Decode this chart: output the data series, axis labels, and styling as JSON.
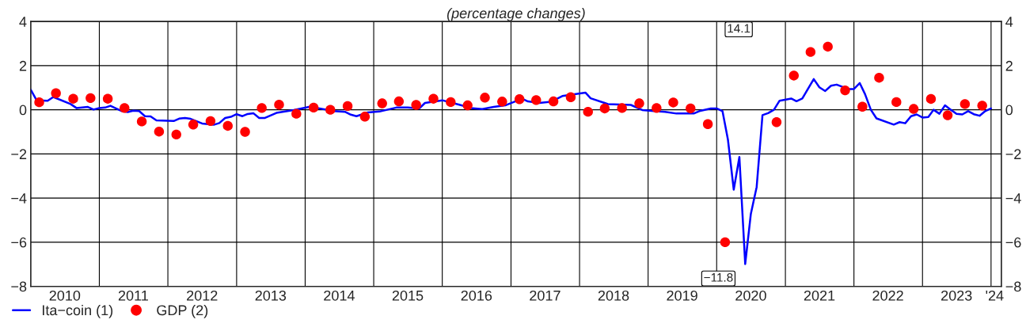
{
  "chart_data": {
    "type": "line",
    "title": "(percentage changes)",
    "xlim": [
      "2010-01-01",
      "2024-02-25"
    ],
    "xticks": [
      {
        "value": "2010-07-01",
        "label": "2010"
      },
      {
        "value": "2011-07-01",
        "label": "2011"
      },
      {
        "value": "2012-07-01",
        "label": "2012"
      },
      {
        "value": "2013-07-01",
        "label": "2013"
      },
      {
        "value": "2014-07-01",
        "label": "2014"
      },
      {
        "value": "2015-07-01",
        "label": "2015"
      },
      {
        "value": "2016-07-01",
        "label": "2016"
      },
      {
        "value": "2017-07-01",
        "label": "2017"
      },
      {
        "value": "2018-07-01",
        "label": "2018"
      },
      {
        "value": "2019-07-01",
        "label": "2019"
      },
      {
        "value": "2020-07-01",
        "label": "2020"
      },
      {
        "value": "2021-07-01",
        "label": "2021"
      },
      {
        "value": "2022-07-01",
        "label": "2022"
      },
      {
        "value": "2023-07-01",
        "label": "2023"
      },
      {
        "value": "2024-01-20",
        "label": "'24"
      },
      {
        "value": "2011-01-01",
        "label": null
      },
      {
        "value": "2012-01-01",
        "label": null
      },
      {
        "value": "2013-01-01",
        "label": null
      },
      {
        "value": "2014-01-01",
        "label": null
      },
      {
        "value": "2015-01-01",
        "label": null
      },
      {
        "value": "2016-01-01",
        "label": null
      },
      {
        "value": "2017-01-01",
        "label": null
      },
      {
        "value": "2018-01-01",
        "label": null
      },
      {
        "value": "2019-01-01",
        "label": null
      },
      {
        "value": "2020-01-01",
        "label": null
      },
      {
        "value": "2021-01-01",
        "label": null
      },
      {
        "value": "2022-01-01",
        "label": null
      },
      {
        "value": "2023-01-01",
        "label": null
      },
      {
        "value": "2024-01-01",
        "label": null
      }
    ],
    "ylim": [
      -8,
      4
    ],
    "yticks": [
      {
        "value": -8,
        "label": "−8"
      },
      {
        "value": -6,
        "label": "−6"
      },
      {
        "value": -4,
        "label": "−4"
      },
      {
        "value": -2,
        "label": "−2"
      },
      0,
      2,
      4
    ],
    "y2lim": [
      -8,
      4
    ],
    "y2ticks": [
      {
        "value": -8,
        "label": "−8"
      },
      {
        "value": -6,
        "label": "−6"
      },
      {
        "value": -4,
        "label": "−4"
      },
      {
        "value": -2,
        "label": "−2"
      },
      0,
      2,
      4
    ],
    "grid": true,
    "legend": "bottom left",
    "series": [
      {
        "name": "Ita−coin (1)",
        "color": "#0000ff",
        "line_style": "solid",
        "x": [
          "2010-01",
          "2010-02",
          "2010-04",
          "2010-05",
          "2010-08",
          "2010-09",
          "2010-11",
          "2010-12",
          "2011-01",
          "2011-02",
          "2011-03",
          "2011-05",
          "2011-06",
          "2011-07",
          "2011-08",
          "2011-09",
          "2011-10",
          "2011-11",
          "2012-02",
          "2012-03",
          "2012-04",
          "2012-05",
          "2012-07",
          "2012-09",
          "2012-10",
          "2012-11",
          "2012-12",
          "2013-01",
          "2013-02",
          "2013-03",
          "2013-04",
          "2013-05",
          "2013-06",
          "2013-08",
          "2013-11",
          "2014-02",
          "2014-03",
          "2014-06",
          "2014-08",
          "2014-09",
          "2014-10",
          "2014-12",
          "2015-02",
          "2015-05",
          "2015-07",
          "2015-09",
          "2015-10",
          "2016-01",
          "2016-04",
          "2016-06",
          "2016-08",
          "2016-10",
          "2016-12",
          "2017-03",
          "2017-04",
          "2017-06",
          "2017-08",
          "2017-10",
          "2018-02",
          "2018-03",
          "2018-06",
          "2018-10",
          "2018-12",
          "2019-02",
          "2019-04",
          "2019-06",
          "2019-09",
          "2019-10",
          "2019-12",
          "2020-01",
          "2020-02",
          "2020-03",
          "2020-04",
          "2020-05",
          "2020-06",
          "2020-07",
          "2020-08",
          "2020-09",
          "2020-10",
          "2020-11",
          "2020-12",
          "2021-02",
          "2021-03",
          "2021-04",
          "2021-06",
          "2021-07",
          "2021-08",
          "2021-09",
          "2021-10",
          "2021-12",
          "2022-01",
          "2022-02",
          "2022-03",
          "2022-04",
          "2022-05",
          "2022-08",
          "2022-09",
          "2022-10",
          "2022-11",
          "2022-12",
          "2023-01",
          "2023-02",
          "2023-03",
          "2023-04",
          "2023-05",
          "2023-06",
          "2023-07",
          "2023-08",
          "2023-09",
          "2023-10",
          "2023-11",
          "2023-12",
          "2024-01"
        ],
        "values": [
          0.91,
          0.43,
          0.41,
          0.58,
          0.26,
          0.08,
          0.13,
          0.01,
          0.08,
          0.1,
          0.18,
          -0.06,
          -0.1,
          -0.04,
          -0.06,
          -0.29,
          -0.3,
          -0.48,
          -0.51,
          -0.4,
          -0.37,
          -0.41,
          -0.62,
          -0.68,
          -0.6,
          -0.37,
          -0.32,
          -0.2,
          -0.29,
          -0.19,
          -0.16,
          -0.37,
          -0.37,
          -0.14,
          -0.01,
          0.15,
          0.09,
          -0.06,
          -0.09,
          -0.22,
          -0.29,
          -0.12,
          -0.08,
          0.1,
          0.1,
          0.06,
          0.31,
          0.43,
          0.23,
          0.08,
          0.03,
          0.13,
          0.2,
          0.5,
          0.38,
          0.31,
          0.36,
          0.62,
          0.78,
          0.52,
          0.26,
          0.22,
          -0.01,
          -0.06,
          -0.09,
          -0.17,
          -0.17,
          -0.06,
          0.06,
          0.06,
          -0.06,
          -1.35,
          -3.62,
          -2.14,
          -6.99,
          -4.72,
          -3.5,
          -0.24,
          -0.15,
          0.0,
          0.41,
          0.51,
          0.39,
          0.51,
          1.39,
          1.02,
          0.85,
          1.09,
          1.14,
          0.94,
          0.94,
          1.21,
          0.71,
          0.0,
          -0.39,
          -0.67,
          -0.56,
          -0.61,
          -0.29,
          -0.21,
          -0.35,
          -0.33,
          0.0,
          -0.18,
          0.2,
          0.0,
          -0.18,
          -0.21,
          -0.06,
          -0.2,
          -0.27,
          -0.06,
          0.06
        ]
      },
      {
        "name": "GDP (2)",
        "type": "scatter",
        "color": "#ff0000",
        "marker": "circle",
        "x": [
          "2010-02-15",
          "2010-05-15",
          "2010-08-15",
          "2010-11-15",
          "2011-02-15",
          "2011-05-15",
          "2011-08-15",
          "2011-11-15",
          "2012-02-15",
          "2012-05-15",
          "2012-08-15",
          "2012-11-15",
          "2013-02-15",
          "2013-05-15",
          "2013-08-15",
          "2013-11-15",
          "2014-02-15",
          "2014-05-15",
          "2014-08-15",
          "2014-11-15",
          "2015-02-15",
          "2015-05-15",
          "2015-08-15",
          "2015-11-15",
          "2016-02-15",
          "2016-05-15",
          "2016-08-15",
          "2016-11-15",
          "2017-02-15",
          "2017-05-15",
          "2017-08-15",
          "2017-11-15",
          "2018-02-15",
          "2018-05-15",
          "2018-08-15",
          "2018-11-15",
          "2019-02-15",
          "2019-05-15",
          "2019-08-15",
          "2019-11-15",
          "2020-02-15",
          "2020-05-15",
          "2020-08-15",
          "2020-11-15",
          "2021-02-15",
          "2021-05-15",
          "2021-08-15",
          "2021-11-15",
          "2022-02-15",
          "2022-05-15",
          "2022-08-15",
          "2022-11-15",
          "2023-02-15",
          "2023-05-15",
          "2023-08-15",
          "2023-11-15"
        ],
        "values": [
          0.34,
          0.75,
          0.5,
          0.53,
          0.5,
          0.08,
          -0.53,
          -0.99,
          -1.12,
          -0.67,
          -0.51,
          -0.73,
          -1.0,
          0.08,
          0.23,
          -0.18,
          0.1,
          0.0,
          0.17,
          -0.31,
          0.29,
          0.38,
          0.22,
          0.5,
          0.35,
          0.2,
          0.55,
          0.37,
          0.48,
          0.44,
          0.38,
          0.57,
          -0.09,
          0.06,
          0.08,
          0.29,
          0.08,
          0.33,
          0.06,
          -0.65,
          -6.0,
          null,
          null,
          -0.56,
          1.55,
          2.62,
          2.86,
          0.88,
          0.14,
          1.45,
          0.35,
          0.04,
          0.49,
          -0.25,
          0.26,
          0.19
        ],
        "value_labels": [
          null,
          null,
          null,
          null,
          null,
          null,
          null,
          null,
          null,
          null,
          null,
          null,
          null,
          null,
          null,
          null,
          null,
          null,
          null,
          null,
          null,
          null,
          null,
          null,
          null,
          null,
          null,
          null,
          null,
          null,
          null,
          null,
          null,
          null,
          null,
          null,
          null,
          null,
          null,
          null,
          null,
          null,
          null,
          null,
          null,
          null,
          null,
          null,
          null,
          null,
          null,
          null,
          null,
          null,
          null,
          null
        ]
      }
    ],
    "annotations": [
      "−11.8",
      "14.1"
    ]
  }
}
